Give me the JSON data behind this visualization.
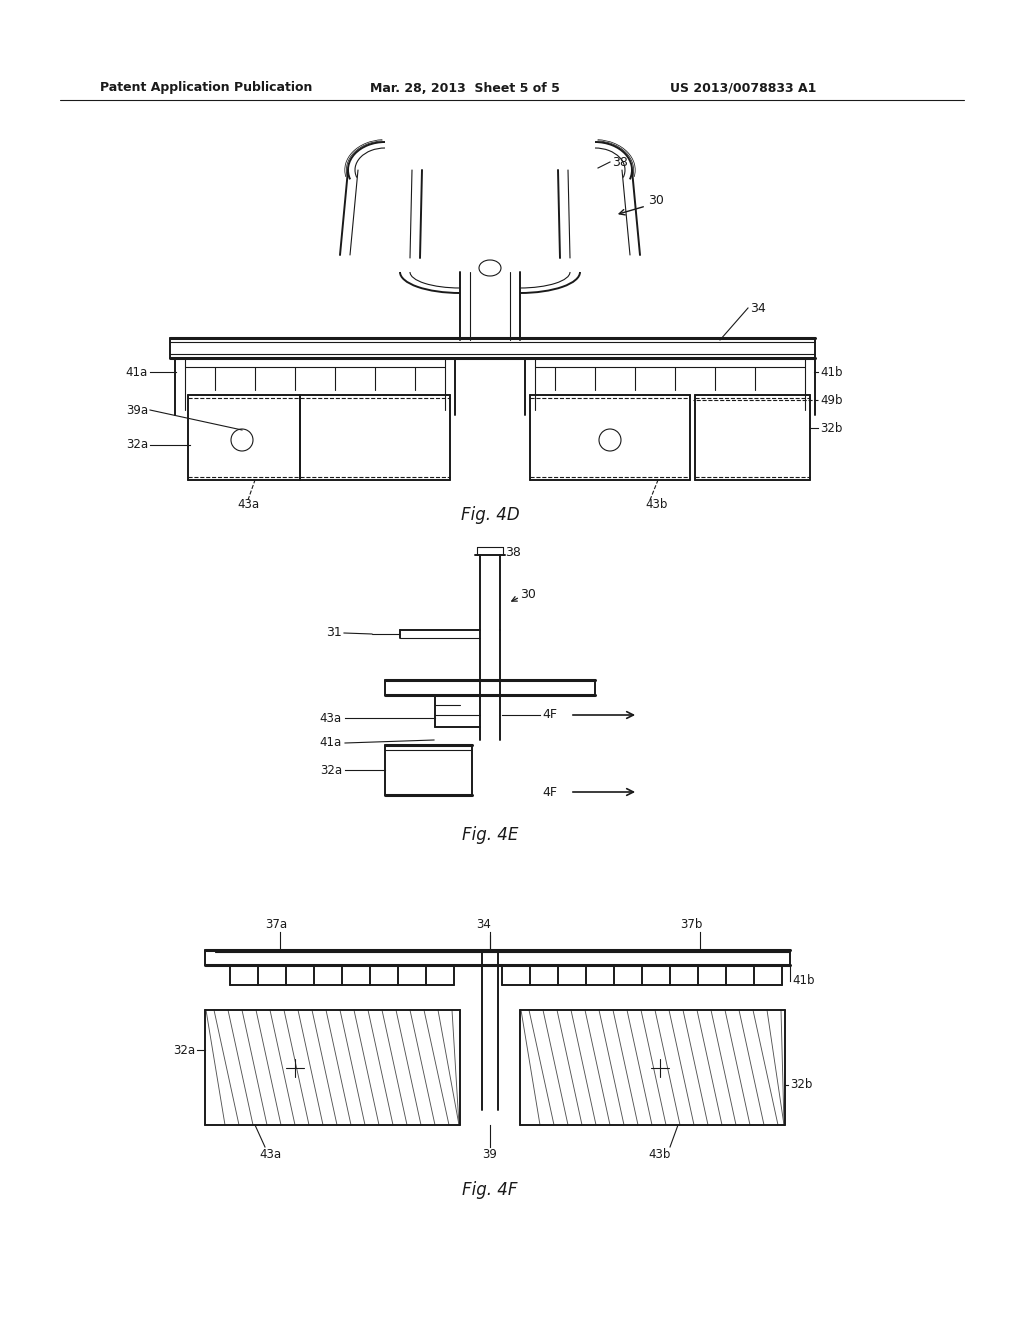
{
  "bg_color": "#ffffff",
  "line_color": "#1a1a1a",
  "header_left": "Patent Application Publication",
  "header_mid": "Mar. 28, 2013  Sheet 5 of 5",
  "header_right": "US 2013/0078833 A1",
  "fig4d_label": "Fig. 4D",
  "fig4e_label": "Fig. 4E",
  "fig4f_label": "Fig. 4F"
}
